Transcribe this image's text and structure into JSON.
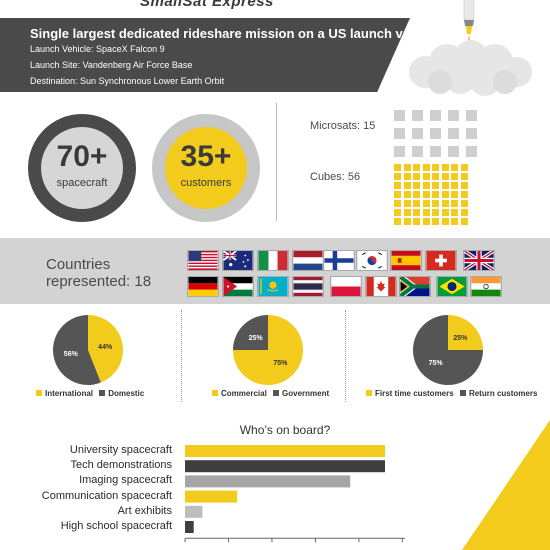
{
  "header": {
    "partial_title": "SmallSat Express",
    "headline": "Single largest dedicated rideshare mission on a US launch vehicle.",
    "details": [
      "Launch Vehicle: SpaceX Falcon 9",
      "Launch Site: Vandenberg Air Force Base",
      "Destination: Sun Synchronous Lower Earth Orbit"
    ]
  },
  "stats": {
    "spacecraft_value": "70+",
    "spacecraft_label": "spacecraft",
    "customers_value": "35+",
    "customers_label": "customers",
    "microsats_label": "Microsats: 15",
    "microsats_count": 15,
    "cubes_label": "Cubes: 56",
    "cubes_count": 56
  },
  "countries": {
    "label_line1": "Countries",
    "label_line2": "represented: 18",
    "flags": [
      "united-states",
      "australia",
      "italy",
      "netherlands",
      "finland",
      "south-korea",
      "spain",
      "switzerland",
      "united-kingdom",
      "germany",
      "jordan",
      "kazakhstan",
      "thailand",
      "poland",
      "canada",
      "south-africa",
      "brazil",
      "india"
    ]
  },
  "colors": {
    "yellow": "#f2cb1d",
    "dark": "#555555",
    "band": "#4a4a4a"
  },
  "chart_data": [
    {
      "type": "pie",
      "slices": [
        {
          "name": "International",
          "value": 44,
          "label": "44%",
          "color": "#f2cb1d"
        },
        {
          "name": "Domestic",
          "value": 56,
          "label": "56%",
          "color": "#555555"
        }
      ]
    },
    {
      "type": "pie",
      "slices": [
        {
          "name": "Commercial",
          "value": 75,
          "label": "75%",
          "color": "#f2cb1d"
        },
        {
          "name": "Government",
          "value": 25,
          "label": "25%",
          "color": "#555555"
        }
      ]
    },
    {
      "type": "pie",
      "slices": [
        {
          "name": "First time customers",
          "value": 25,
          "label": "25%",
          "color": "#f2cb1d"
        },
        {
          "name": "Return customers",
          "value": 75,
          "label": "75%",
          "color": "#555555"
        }
      ]
    },
    {
      "type": "bar",
      "orientation": "horizontal",
      "title": "Who’s on board?",
      "categories": [
        "University spacecraft",
        "Tech demonstrations",
        "Imaging spacecraft",
        "Communication spacecraft",
        "Art exhibits",
        "High school spacecraft"
      ],
      "values": [
        23,
        23,
        19,
        6,
        2,
        1
      ],
      "colors": [
        "#f2cb1d",
        "#3e3e3e",
        "#a6a6a6",
        "#f2cb1d",
        "#bdbdbd",
        "#3e3e3e"
      ],
      "xlim": [
        0,
        25
      ]
    }
  ]
}
